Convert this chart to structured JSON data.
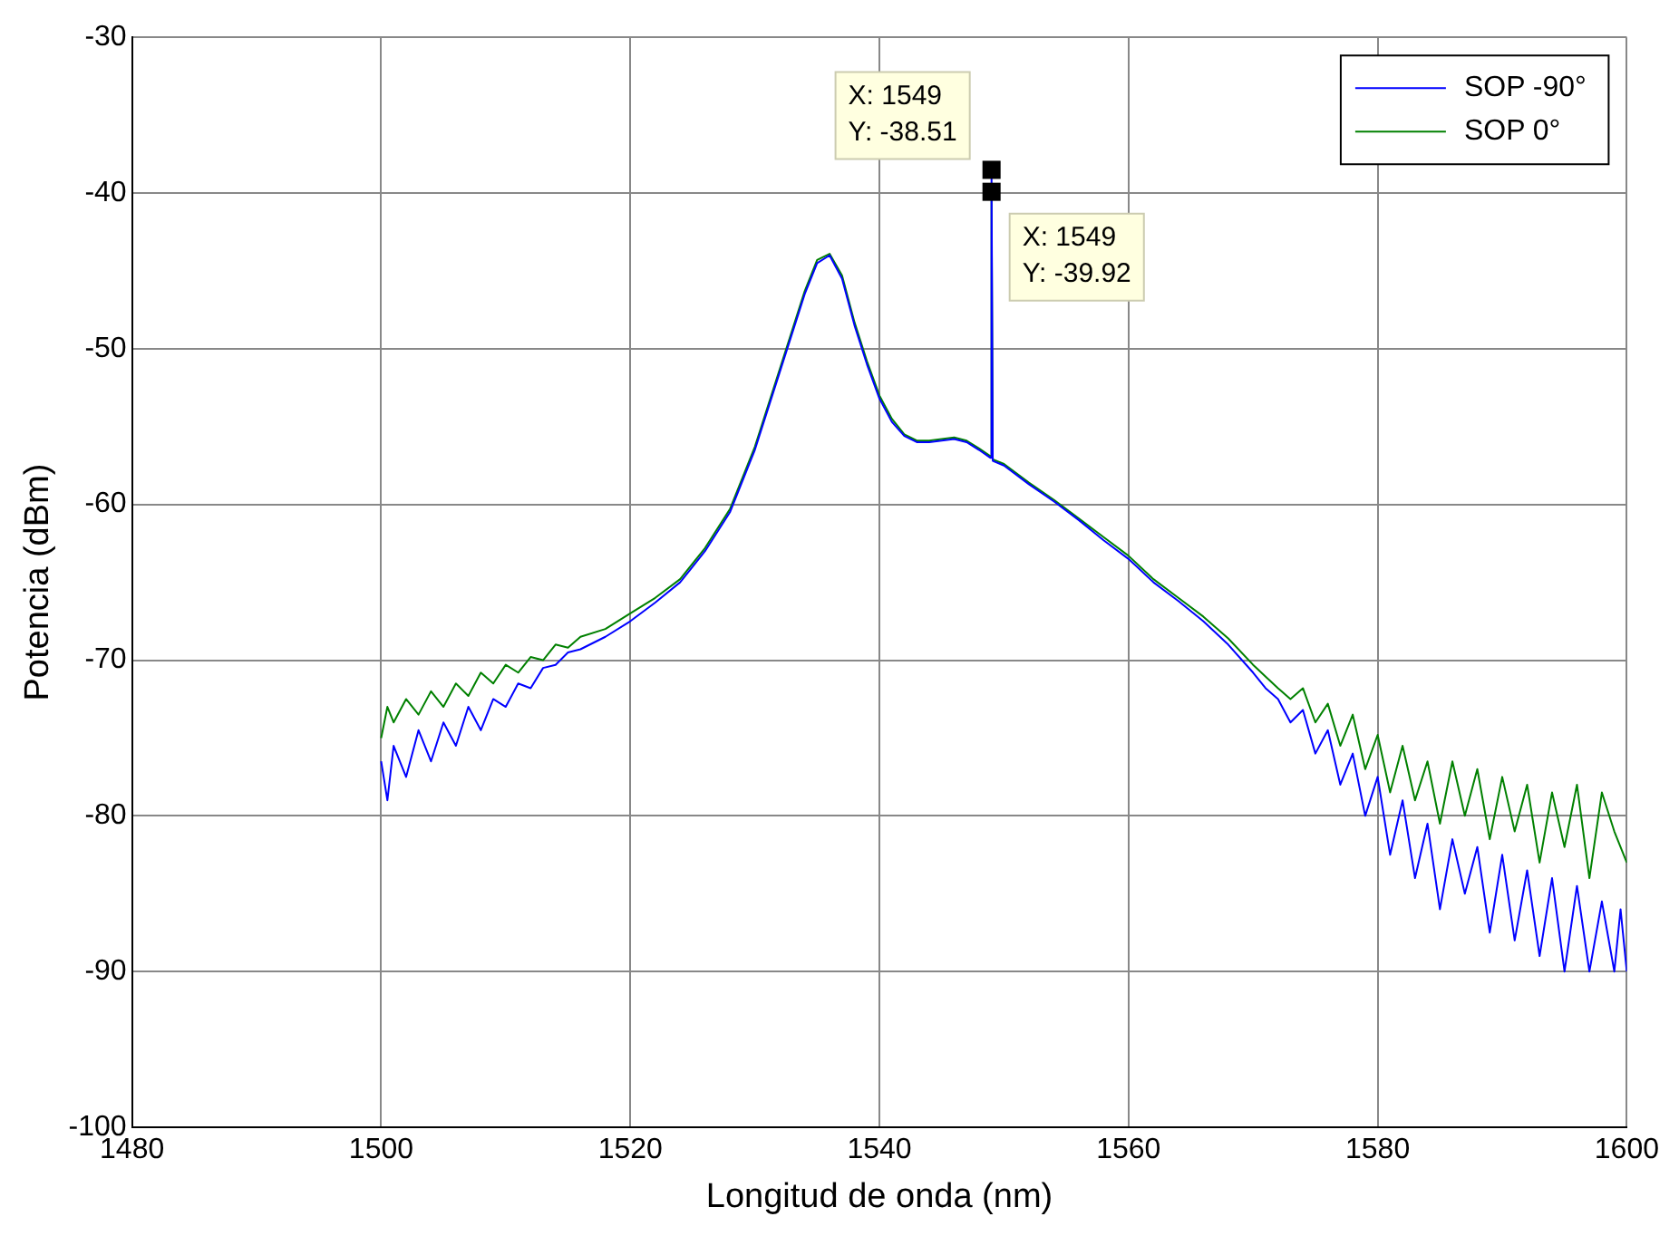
{
  "chart_data": {
    "type": "line",
    "xlabel": "Longitud de onda (nm)",
    "ylabel": "Potencia (dBm)",
    "xlim": [
      1480,
      1600
    ],
    "xticks": [
      1480,
      1500,
      1520,
      1540,
      1560,
      1580,
      1600
    ],
    "ylim": [
      -100,
      -30
    ],
    "yticks": [
      -100,
      -90,
      -80,
      -70,
      -60,
      -50,
      -40,
      -30
    ],
    "grid": true,
    "legend": "top right",
    "marker": "none",
    "line_style": "solid",
    "annotations": [
      {
        "text": "X: 1549\nY: -38.51",
        "x": 1549,
        "y": -38.51
      },
      {
        "text": "X: 1549\nY: -39.92",
        "x": 1549,
        "y": -39.92
      }
    ],
    "series": [
      {
        "name": "SOP -90°",
        "color": "#0000ff",
        "x": [
          1500,
          1500.5,
          1501,
          1502,
          1503,
          1504,
          1505,
          1506,
          1507,
          1508,
          1509,
          1510,
          1511,
          1512,
          1513,
          1514,
          1515,
          1516,
          1518,
          1520,
          1522,
          1524,
          1526,
          1528,
          1530,
          1532,
          1534,
          1535,
          1536,
          1537,
          1538,
          1539,
          1540,
          1541,
          1542,
          1543,
          1544,
          1545,
          1546,
          1547,
          1548,
          1548.9,
          1549,
          1549.1,
          1550,
          1552,
          1554,
          1556,
          1558,
          1560,
          1562,
          1564,
          1566,
          1568,
          1570,
          1571,
          1572,
          1573,
          1574,
          1575,
          1576,
          1577,
          1578,
          1579,
          1580,
          1581,
          1582,
          1583,
          1584,
          1585,
          1586,
          1587,
          1588,
          1589,
          1590,
          1591,
          1592,
          1593,
          1594,
          1595,
          1596,
          1597,
          1598,
          1599,
          1599.5,
          1600
        ],
        "values": [
          -76.5,
          -79,
          -75.5,
          -77.5,
          -74.5,
          -76.5,
          -74,
          -75.5,
          -73,
          -74.5,
          -72.5,
          -73,
          -71.5,
          -71.8,
          -70.5,
          -70.3,
          -69.5,
          -69.3,
          -68.5,
          -67.5,
          -66.3,
          -65,
          -63,
          -60.5,
          -56.5,
          -51.5,
          -46.5,
          -44.5,
          -44,
          -45.5,
          -48.5,
          -51,
          -53.2,
          -54.7,
          -55.6,
          -56,
          -56,
          -55.9,
          -55.8,
          -56,
          -56.5,
          -57,
          -38.51,
          -57.2,
          -57.5,
          -58.7,
          -59.8,
          -61,
          -62.3,
          -63.5,
          -65,
          -66.2,
          -67.5,
          -69,
          -70.8,
          -71.8,
          -72.5,
          -74,
          -73.2,
          -76,
          -74.5,
          -78,
          -76,
          -80,
          -77.5,
          -82.5,
          -79,
          -84,
          -80.5,
          -86,
          -81.5,
          -85,
          -82,
          -87.5,
          -82.5,
          -88,
          -83.5,
          -89,
          -84,
          -90,
          -84.5,
          -90,
          -85.5,
          -90,
          -86,
          -90
        ]
      },
      {
        "name": "SOP 0°",
        "color": "#008000",
        "x": [
          1500,
          1500.5,
          1501,
          1502,
          1503,
          1504,
          1505,
          1506,
          1507,
          1508,
          1509,
          1510,
          1511,
          1512,
          1513,
          1514,
          1515,
          1516,
          1518,
          1520,
          1522,
          1524,
          1526,
          1528,
          1530,
          1532,
          1534,
          1535,
          1536,
          1537,
          1538,
          1539,
          1540,
          1541,
          1542,
          1543,
          1544,
          1545,
          1546,
          1547,
          1548,
          1548.9,
          1549,
          1549.1,
          1550,
          1552,
          1554,
          1556,
          1558,
          1560,
          1562,
          1564,
          1566,
          1568,
          1570,
          1572,
          1573,
          1574,
          1575,
          1576,
          1577,
          1578,
          1579,
          1580,
          1581,
          1582,
          1583,
          1584,
          1585,
          1586,
          1587,
          1588,
          1589,
          1590,
          1591,
          1592,
          1593,
          1594,
          1595,
          1596,
          1597,
          1598,
          1599,
          1600
        ],
        "values": [
          -75,
          -73,
          -74,
          -72.5,
          -73.5,
          -72,
          -73,
          -71.5,
          -72.3,
          -70.8,
          -71.5,
          -70.3,
          -70.8,
          -69.8,
          -70,
          -69,
          -69.2,
          -68.5,
          -68,
          -67,
          -66,
          -64.8,
          -62.8,
          -60.3,
          -56.3,
          -51.3,
          -46.3,
          -44.3,
          -43.9,
          -45.3,
          -48.3,
          -50.8,
          -53,
          -54.5,
          -55.5,
          -55.9,
          -55.9,
          -55.8,
          -55.7,
          -55.9,
          -56.4,
          -56.9,
          -39.92,
          -57.1,
          -57.4,
          -58.6,
          -59.7,
          -60.9,
          -62.1,
          -63.3,
          -64.8,
          -66,
          -67.2,
          -68.6,
          -70.3,
          -71.8,
          -72.5,
          -71.8,
          -74,
          -72.8,
          -75.5,
          -73.5,
          -77,
          -74.8,
          -78.5,
          -75.5,
          -79,
          -76.5,
          -80.5,
          -76.5,
          -80,
          -77,
          -81.5,
          -77.5,
          -81,
          -78,
          -83,
          -78.5,
          -82,
          -78,
          -84,
          -78.5,
          -81,
          -83
        ]
      }
    ]
  }
}
